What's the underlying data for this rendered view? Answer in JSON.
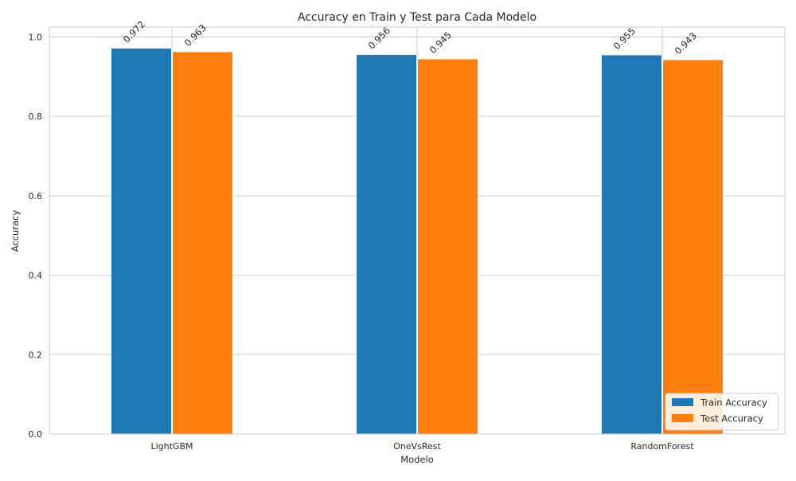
{
  "chart_data": {
    "type": "bar",
    "title": "Accuracy en Train y Test para Cada Modelo",
    "xlabel": "Modelo",
    "ylabel": "Accuracy",
    "categories": [
      "LightGBM",
      "OneVsRest",
      "RandomForest"
    ],
    "series": [
      {
        "name": "Train Accuracy",
        "values": [
          0.972,
          0.956,
          0.955
        ],
        "color": "#1f77b4"
      },
      {
        "name": "Test Accuracy",
        "values": [
          0.963,
          0.945,
          0.943
        ],
        "color": "#ff7f0e"
      }
    ],
    "data_labels": [
      [
        "0.972",
        "0.956",
        "0.955"
      ],
      [
        "0.963",
        "0.945",
        "0.943"
      ]
    ],
    "ylim": [
      0,
      1.025
    ],
    "yticks": [
      0.0,
      0.2,
      0.4,
      0.6,
      0.8,
      1.0
    ],
    "ytick_labels": [
      "0.0",
      "0.2",
      "0.4",
      "0.6",
      "0.8",
      "1.0"
    ],
    "grid": true,
    "legend_position": "bottom-right",
    "colors": {
      "grid": "#cccccc",
      "axes_edge": "#cccccc",
      "bar_edge": "#ffffff"
    }
  }
}
